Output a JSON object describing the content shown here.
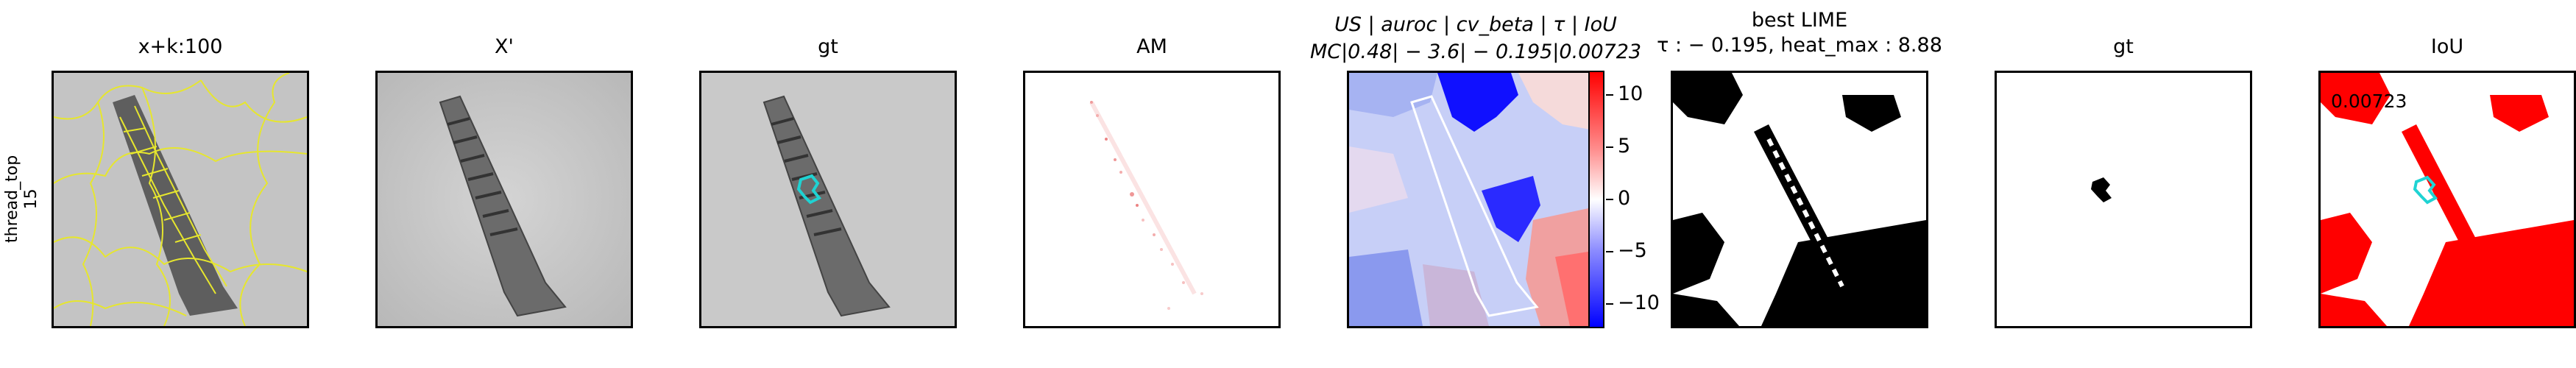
{
  "row_label": {
    "line1": "thread_top",
    "line2": "15"
  },
  "panels": [
    {
      "title": "x+k:100"
    },
    {
      "title": "X'"
    },
    {
      "title": "gt"
    },
    {
      "title": "AM"
    },
    {
      "title_line1": "US | auroc | cv_beta | τ | IoU",
      "title_line2": "MC|0.48| − 3.6| − 0.195|0.00723"
    },
    {
      "title_line1": "best LIME",
      "title_line2": "τ : − 0.195, heat_max : 8.88"
    },
    {
      "title": "gt"
    },
    {
      "title": "IoU"
    }
  ],
  "colorbar": {
    "ticks": [
      "10",
      "5",
      "0",
      "−5",
      "−10"
    ],
    "min": -12,
    "max": 12
  },
  "iou_value": "0.00723",
  "colors": {
    "segment_lines": "#e6e62e",
    "gt_outline": "#1fd3d3",
    "lime_positive": "#ff0000",
    "lime_negative": "#0000ff"
  }
}
